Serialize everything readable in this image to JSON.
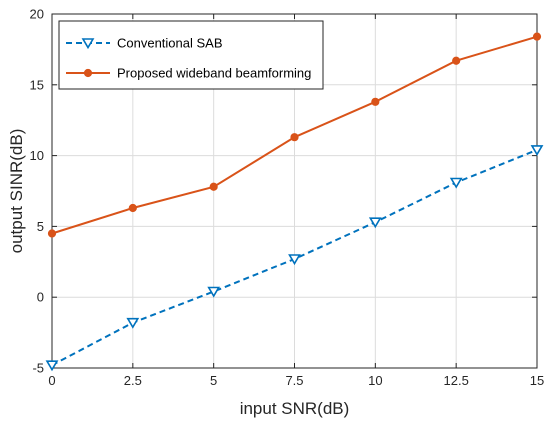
{
  "chart_data": {
    "type": "line",
    "xlabel": "input SNR(dB)",
    "ylabel": "output SINR(dB)",
    "xlim": [
      0,
      15
    ],
    "ylim": [
      -5,
      20
    ],
    "xticks": [
      0,
      2.5,
      5,
      7.5,
      10,
      12.5,
      15
    ],
    "xtick_labels": [
      "0",
      "2.5",
      "5",
      "7.5",
      "10",
      "12.5",
      "15"
    ],
    "yticks": [
      -5,
      0,
      5,
      10,
      15,
      20
    ],
    "ytick_labels": [
      "-5",
      "0",
      "5",
      "10",
      "15",
      "20"
    ],
    "grid": true,
    "legend_position": "top-left",
    "x": [
      0,
      2.5,
      5,
      7.5,
      10,
      12.5,
      15
    ],
    "series": [
      {
        "name": "Conventional SAB",
        "values": [
          -4.8,
          -1.8,
          0.4,
          2.7,
          5.3,
          8.1,
          10.4
        ],
        "color": "#0072BD",
        "line_style": "dashed",
        "marker": "triangle-down"
      },
      {
        "name": "Proposed wideband beamforming",
        "values": [
          4.5,
          6.3,
          7.8,
          11.3,
          13.8,
          16.7,
          18.4
        ],
        "color": "#D95319",
        "line_style": "solid",
        "marker": "circle"
      }
    ]
  }
}
